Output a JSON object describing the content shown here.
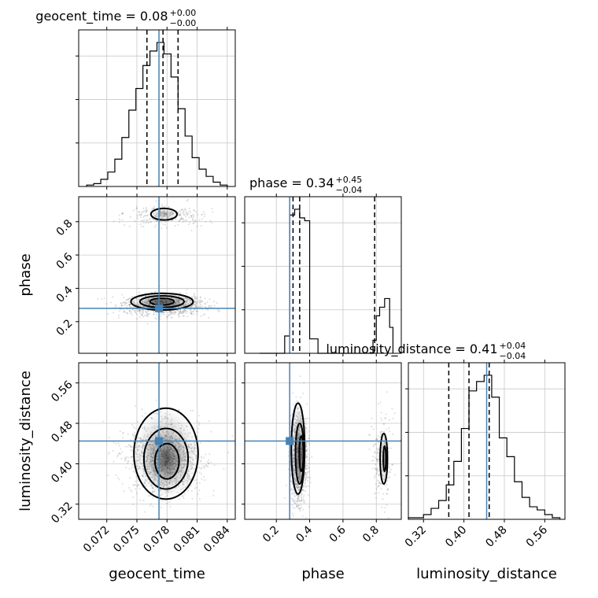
{
  "chart_data": {
    "type": "corner",
    "parameters": [
      "geocent_time",
      "phase",
      "luminosity_distance"
    ],
    "truths": {
      "geocent_time": 0.0772,
      "phase": 0.28,
      "luminosity_distance": 0.445
    },
    "colors": {
      "truth": "#4682b4",
      "hist": "#000000",
      "grid": "#c8c8c8"
    },
    "ranges": {
      "geocent_time": [
        0.0692,
        0.0848
      ],
      "phase": [
        0.01,
        0.95
      ],
      "luminosity_distance": [
        0.29,
        0.6
      ]
    },
    "ticks": {
      "geocent_time": [
        "0.072",
        "0.075",
        "0.078",
        "0.081",
        "0.084"
      ],
      "phase": [
        "0.2",
        "0.4",
        "0.6",
        "0.8"
      ],
      "luminosity_distance": [
        "0.32",
        "0.40",
        "0.48",
        "0.56"
      ]
    },
    "titles": {
      "geocent_time": {
        "text": "geocent_time = 0.08",
        "plus": "+0.00",
        "minus": "−0.00"
      },
      "phase": {
        "text": "phase = 0.34",
        "plus": "+0.45",
        "minus": "−0.04"
      },
      "luminosity_distance": {
        "text": "luminosity_distance = 0.41",
        "plus": "+0.04",
        "minus": "−0.04"
      }
    },
    "quantiles": {
      "geocent_time": [
        0.076,
        0.0776,
        0.0791
      ],
      "phase": [
        0.3,
        0.34,
        0.79
      ],
      "luminosity_distance": [
        0.37,
        0.41,
        0.45
      ]
    },
    "histograms": {
      "geocent_time": {
        "edges": [
          0.07,
          0.0707,
          0.0714,
          0.0721,
          0.0728,
          0.0735,
          0.0742,
          0.0749,
          0.0756,
          0.0763,
          0.077,
          0.0777,
          0.0784,
          0.0791,
          0.0798,
          0.0805,
          0.0812,
          0.0819,
          0.0826,
          0.0833,
          0.084
        ],
        "counts": [
          1,
          2,
          5,
          10,
          19,
          34,
          53,
          68,
          84,
          94,
          100,
          92,
          76,
          54,
          35,
          20,
          12,
          7,
          3,
          1
        ]
      },
      "phase": {
        "edges": [
          0.1,
          0.15,
          0.2,
          0.25,
          0.28,
          0.31,
          0.34,
          0.37,
          0.4,
          0.45,
          0.5,
          0.55,
          0.6,
          0.65,
          0.7,
          0.75,
          0.78,
          0.8,
          0.82,
          0.85,
          0.88,
          0.9
        ],
        "counts": [
          0,
          0,
          0,
          12,
          96,
          100,
          94,
          92,
          10,
          0,
          0,
          0,
          0,
          0,
          0,
          0,
          9,
          26,
          32,
          38,
          18
        ]
      },
      "luminosity_distance": {
        "edges": [
          0.29,
          0.305,
          0.32,
          0.335,
          0.35,
          0.365,
          0.38,
          0.395,
          0.41,
          0.425,
          0.44,
          0.455,
          0.47,
          0.485,
          0.5,
          0.515,
          0.53,
          0.545,
          0.56,
          0.575,
          0.59
        ],
        "counts": [
          1,
          1,
          3,
          7,
          12,
          22,
          37,
          58,
          82,
          88,
          92,
          78,
          52,
          40,
          24,
          14,
          8,
          6,
          3,
          1
        ]
      }
    },
    "labels": {
      "x": [
        "geocent_time",
        "phase",
        "luminosity_distance"
      ],
      "y": [
        "phase",
        "luminosity_distance"
      ]
    }
  }
}
